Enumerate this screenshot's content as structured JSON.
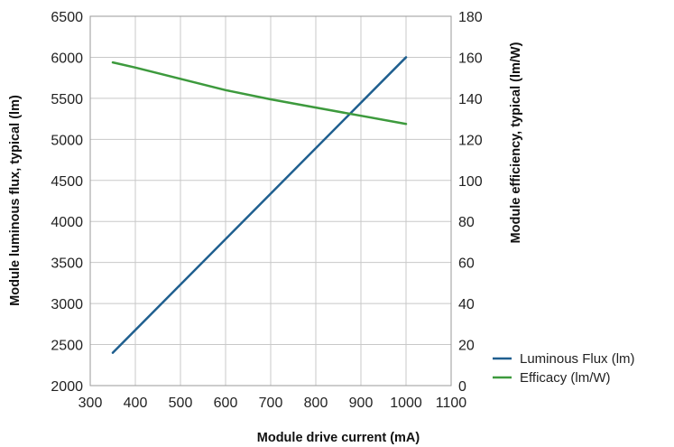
{
  "chart_data": {
    "type": "line",
    "xlabel": "Module drive current (mA)",
    "ylabel_left": "Module luminous flux, typical (lm)",
    "ylabel_right": "Module efficiency, typical (lm/W)",
    "xlim": [
      300,
      1100
    ],
    "ylim_left": [
      2000,
      6500
    ],
    "ylim_right": [
      0,
      180
    ],
    "x_ticks": [
      300,
      400,
      500,
      600,
      700,
      800,
      900,
      1000,
      1100
    ],
    "y_left_ticks": [
      2000,
      2500,
      3000,
      3500,
      4000,
      4500,
      5000,
      5500,
      6000,
      6500
    ],
    "y_right_ticks": [
      0,
      20,
      40,
      60,
      80,
      100,
      120,
      140,
      160,
      180
    ],
    "grid": true,
    "legend_position": "bottom-right",
    "series": [
      {
        "name": "Luminous Flux (lm)",
        "axis": "left",
        "color": "#1f5f8f",
        "x": [
          350,
          1000
        ],
        "y": [
          2400,
          6000
        ]
      },
      {
        "name": "Efficacy (lm/W)",
        "axis": "right",
        "color": "#3d9a3d",
        "x": [
          350,
          400,
          500,
          600,
          700,
          800,
          900,
          1000
        ],
        "y": [
          157.5,
          155,
          149.5,
          144,
          139.5,
          135.5,
          131.5,
          127.5
        ]
      }
    ]
  }
}
